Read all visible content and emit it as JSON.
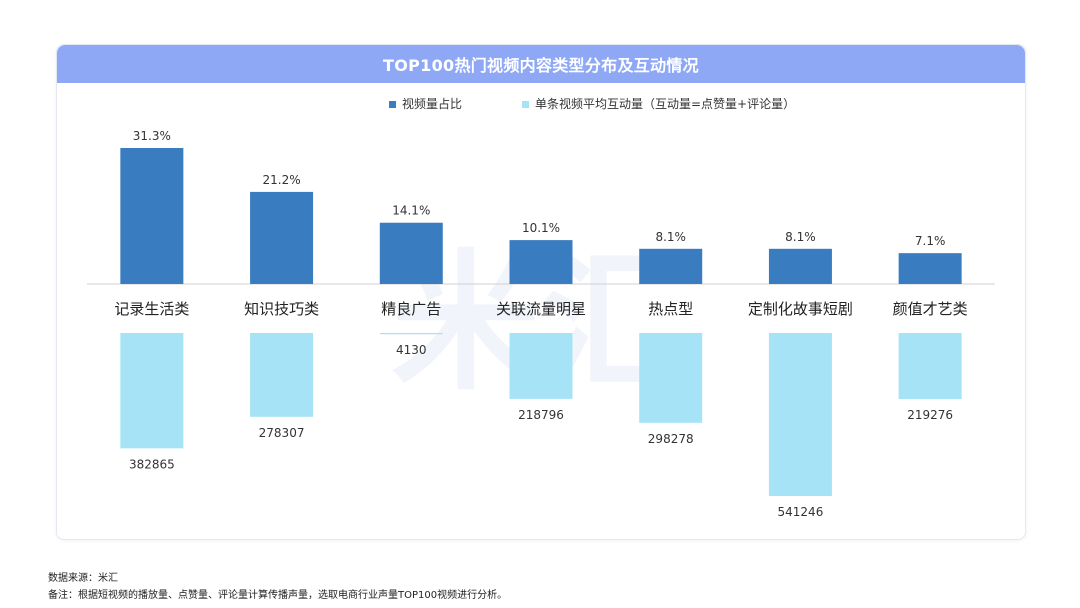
{
  "chart_data": {
    "type": "bar",
    "title": "TOP100热门视频内容类型分布及互动情况",
    "categories": [
      "记录生活类",
      "知识技巧类",
      "精良广告",
      "关联流量明星",
      "热点型",
      "定制化故事短剧",
      "颜值才艺类"
    ],
    "series": [
      {
        "name": "视频量占比",
        "values": [
          31.3,
          21.2,
          14.1,
          10.1,
          8.1,
          8.1,
          7.1
        ],
        "labels": [
          "31.3%",
          "21.2%",
          "14.1%",
          "10.1%",
          "8.1%",
          "8.1%",
          "7.1%"
        ],
        "color": "#3a7cc0"
      },
      {
        "name": "单条视频平均互动量（互动量=点赞量+评论量）",
        "values": [
          382865,
          278307,
          4130,
          218796,
          298278,
          541246,
          219276
        ],
        "labels": [
          "382865",
          "278307",
          "4130",
          "218796",
          "298278",
          "541246",
          "219276"
        ],
        "color": "#a6e3f7"
      }
    ],
    "legend_position": "top",
    "grid": false
  },
  "footer": {
    "source": "数据来源：米汇",
    "note": "备注：根据短视频的播放量、点赞量、评论量计算传播声量，选取电商行业声量TOP100视频进行分析。"
  },
  "watermark": "米汇"
}
